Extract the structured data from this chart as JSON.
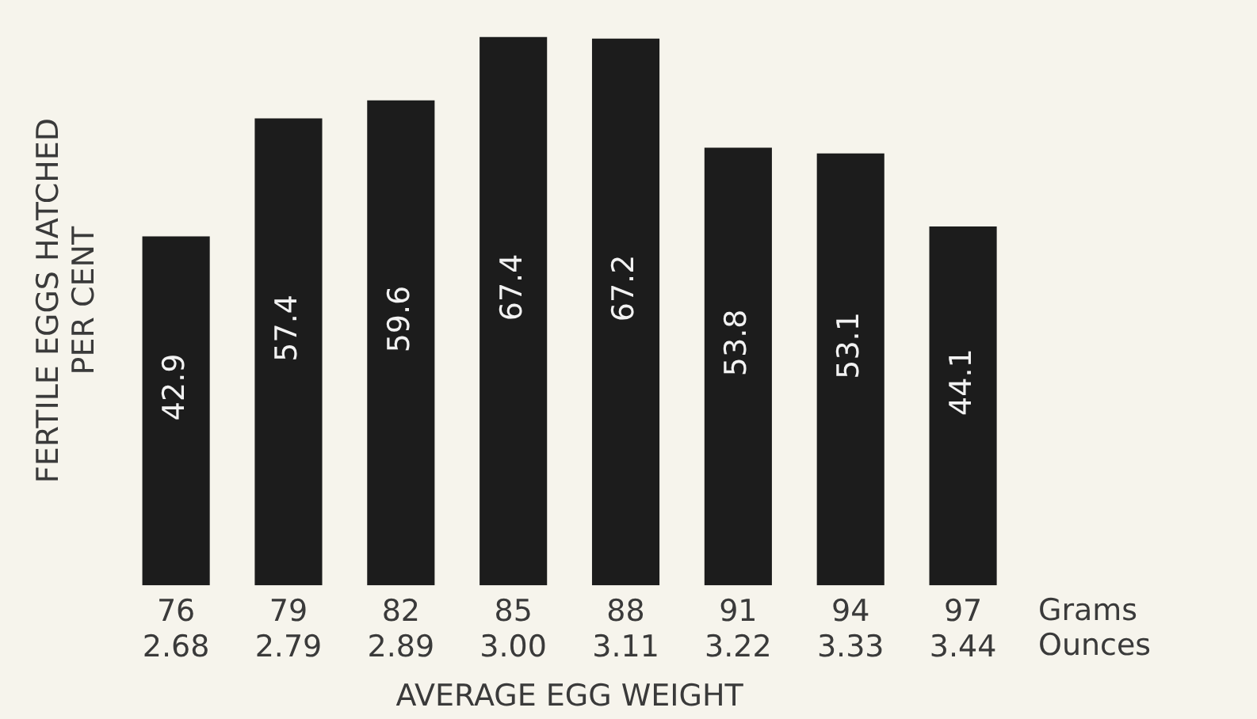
{
  "chart_data": {
    "type": "bar",
    "xlabel": "AVERAGE EGG WEIGHT",
    "ylabel": "FERTILE EGGS HATCHED\nPER CENT",
    "categories": [
      "76\n2.68",
      "79\n2.79",
      "82\n2.89",
      "85\n3.00",
      "88\n3.11",
      "91\n3.22",
      "94\n3.33",
      "97\n3.44"
    ],
    "values": [
      42.9,
      57.4,
      59.6,
      67.4,
      67.2,
      53.8,
      53.1,
      44.1
    ],
    "color": "#1c1c1c",
    "data_labels": true,
    "annotations": [
      "Grams",
      "Ounces"
    ]
  }
}
